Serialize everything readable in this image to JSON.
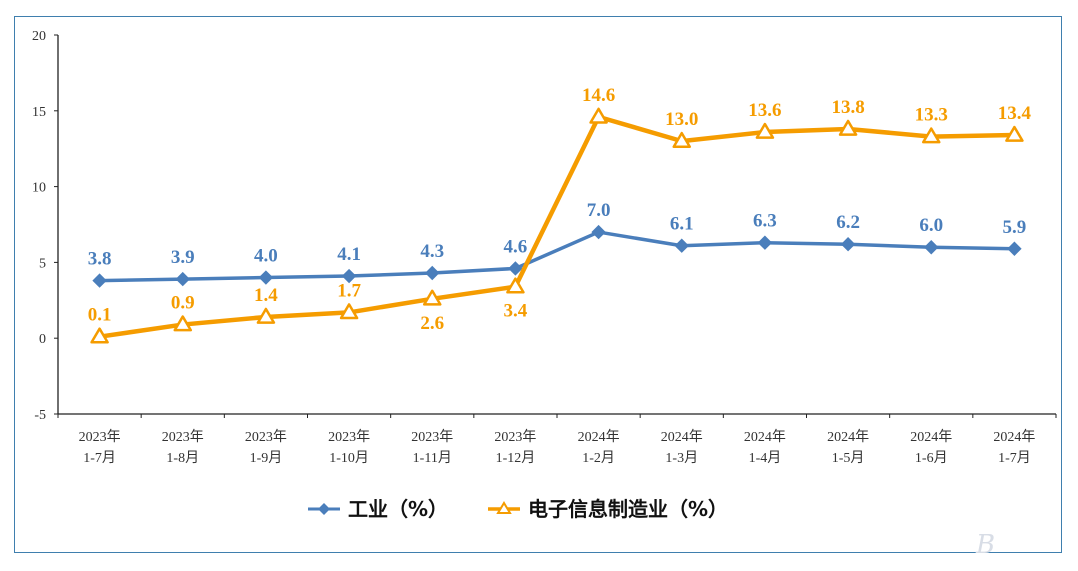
{
  "chart_data": {
    "type": "line",
    "categories": [
      [
        "2023年",
        "1-7月"
      ],
      [
        "2023年",
        "1-8月"
      ],
      [
        "2023年",
        "1-9月"
      ],
      [
        "2023年",
        "1-10月"
      ],
      [
        "2023年",
        "1-11月"
      ],
      [
        "2023年",
        "1-12月"
      ],
      [
        "2024年",
        "1-2月"
      ],
      [
        "2024年",
        "1-3月"
      ],
      [
        "2024年",
        "1-4月"
      ],
      [
        "2024年",
        "1-5月"
      ],
      [
        "2024年",
        "1-6月"
      ],
      [
        "2024年",
        "1-7月"
      ]
    ],
    "series": [
      {
        "name": "工业（%）",
        "color": "#4a7ebb",
        "marker": "diamond",
        "values": [
          3.8,
          3.9,
          4.0,
          4.1,
          4.3,
          4.6,
          7.0,
          6.1,
          6.3,
          6.2,
          6.0,
          5.9
        ],
        "labels": [
          "3.8",
          "3.9",
          "4.0",
          "4.1",
          "4.3",
          "4.6",
          "7.0",
          "6.1",
          "6.3",
          "6.2",
          "6.0",
          "5.9"
        ],
        "label_position": [
          "above",
          "above",
          "above",
          "above",
          "above",
          "above",
          "above",
          "above",
          "above",
          "above",
          "above",
          "above"
        ]
      },
      {
        "name": "电子信息制造业（%）",
        "color": "#f59c00",
        "marker": "triangle",
        "values": [
          0.1,
          0.9,
          1.4,
          1.7,
          2.6,
          3.4,
          14.6,
          13.0,
          13.6,
          13.8,
          13.3,
          13.4
        ],
        "labels": [
          "0.1",
          "0.9",
          "1.4",
          "1.7",
          "2.6",
          "3.4",
          "14.6",
          "13.0",
          "13.6",
          "13.8",
          "13.3",
          "13.4"
        ],
        "label_position": [
          "above",
          "above",
          "above",
          "above",
          "below",
          "below",
          "above",
          "above",
          "above",
          "above",
          "above",
          "above"
        ]
      }
    ],
    "yticks": [
      "20",
      "15",
      "10",
      "5",
      "0",
      "-5"
    ],
    "ylim": [
      -5,
      20
    ],
    "title": "",
    "xlabel": "",
    "ylabel": "",
    "grid": false,
    "legend_position": "bottom"
  },
  "colors": {
    "frame": "#3f7fae",
    "axis": "#222222"
  },
  "watermark": "B"
}
